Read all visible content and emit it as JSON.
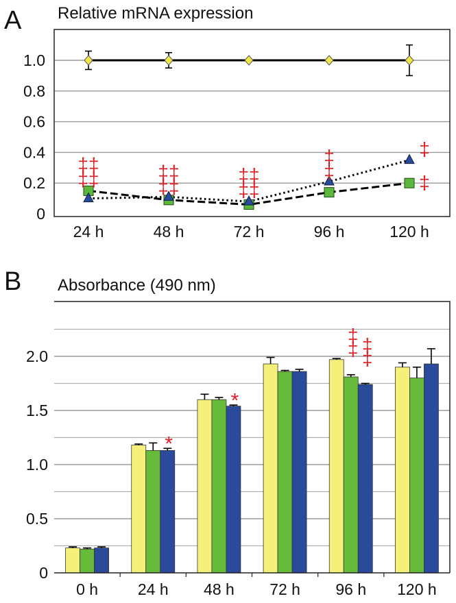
{
  "panels": [
    {
      "label": "A",
      "title": "Relative mRNA expression",
      "chart_data": {
        "type": "line",
        "categories": [
          "24 h",
          "48 h",
          "72 h",
          "96 h",
          "120 h"
        ],
        "yticks": [
          0,
          0.2,
          0.4,
          0.6,
          0.8,
          1.0
        ],
        "ytick_labels": [
          "0",
          "0.2",
          "0.4",
          "0.6",
          "0.8",
          "1.0"
        ],
        "ylim": [
          0,
          1.0
        ],
        "grid": true,
        "series": [
          {
            "values": [
              1.0,
              1.0,
              1.0,
              1.0,
              1.0
            ],
            "errors": [
              0.06,
              0.05,
              0.0,
              0.0,
              0.1
            ],
            "marker": "diamond",
            "color": "#f2e84a",
            "line": "solid"
          },
          {
            "values": [
              0.15,
              0.09,
              0.06,
              0.14,
              0.2
            ],
            "errors": [
              0,
              0,
              0,
              0,
              0
            ],
            "marker": "square",
            "color": "#5cb83c",
            "line": "dashed"
          },
          {
            "values": [
              0.1,
              0.11,
              0.08,
              0.21,
              0.35
            ],
            "errors": [
              0,
              0,
              0,
              0,
              0
            ],
            "marker": "triangle",
            "color": "#2a4a9c",
            "line": "dotted"
          }
        ],
        "annotations": [
          {
            "category": "24 h",
            "symbol": "‡‡",
            "rows": 2,
            "y": 0.28
          },
          {
            "category": "48 h",
            "symbol": "‡‡",
            "rows": 2,
            "y": 0.23
          },
          {
            "category": "72 h",
            "symbol": "‡‡",
            "rows": 2,
            "y": 0.21
          },
          {
            "category": "96 h",
            "symbol": "‡",
            "rows": 2,
            "y": 0.33
          },
          {
            "category": "120 h",
            "symbol": "‡",
            "rows": 1,
            "y": 0.38
          },
          {
            "category": "120 h",
            "symbol": "‡",
            "rows": 1,
            "y": 0.16
          }
        ]
      }
    },
    {
      "label": "B",
      "title": "Absorbance (490 nm)",
      "chart_data": {
        "type": "bar",
        "categories": [
          "0 h",
          "24 h",
          "48 h",
          "72 h",
          "96 h",
          "120 h"
        ],
        "yticks": [
          0,
          0.5,
          1.0,
          1.5,
          2.0
        ],
        "ytick_labels": [
          "0",
          "0.5",
          "1.0",
          "1.5",
          "2.0"
        ],
        "ylim": [
          0,
          2.5
        ],
        "grid": true,
        "series": [
          {
            "values": [
              0.23,
              1.18,
              1.6,
              1.93,
              1.97,
              1.9
            ],
            "errors": [
              0.01,
              0.01,
              0.05,
              0.06,
              0.01,
              0.04
            ],
            "color": "#f5f07a"
          },
          {
            "values": [
              0.22,
              1.13,
              1.6,
              1.86,
              1.81,
              1.8
            ],
            "errors": [
              0.01,
              0.07,
              0.02,
              0.01,
              0.02,
              0.1
            ],
            "color": "#66bb3a"
          },
          {
            "values": [
              0.23,
              1.13,
              1.54,
              1.86,
              1.74,
              1.93
            ],
            "errors": [
              0.01,
              0.02,
              0.01,
              0.02,
              0.01,
              0.14
            ],
            "color": "#2a4a9c"
          }
        ],
        "annotations": [
          {
            "category": "24 h",
            "series": 2,
            "symbol": "*",
            "y": 1.23
          },
          {
            "category": "48 h",
            "series": 2,
            "symbol": "*",
            "y": 1.63
          },
          {
            "category": "96 h",
            "series": 1,
            "symbol": "‡",
            "y": 2.02
          },
          {
            "category": "96 h",
            "series": 2,
            "symbol": "‡",
            "y": 1.93
          }
        ]
      }
    }
  ]
}
